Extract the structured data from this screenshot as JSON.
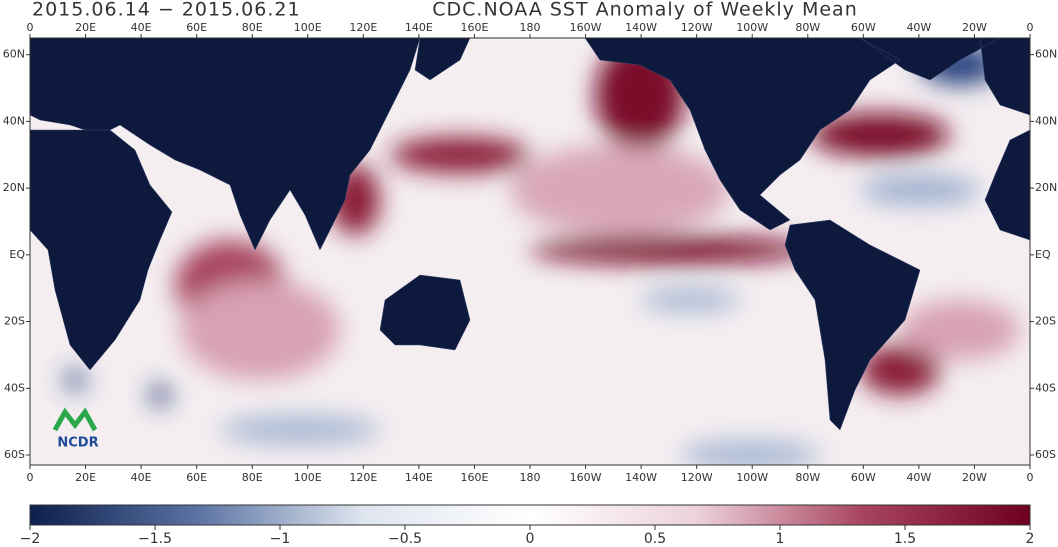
{
  "header": {
    "date_range": "2015.06.14 − 2015.06.21",
    "title": "CDC.NOAA  SST Anomaly of Weekly Mean"
  },
  "map": {
    "lon_range": [
      0,
      360
    ],
    "lat_range": [
      -63,
      65
    ],
    "lon_ticks": [
      {
        "value": 0,
        "label": "0"
      },
      {
        "value": 20,
        "label": "20E"
      },
      {
        "value": 40,
        "label": "40E"
      },
      {
        "value": 60,
        "label": "60E"
      },
      {
        "value": 80,
        "label": "80E"
      },
      {
        "value": 100,
        "label": "100E"
      },
      {
        "value": 120,
        "label": "120E"
      },
      {
        "value": 140,
        "label": "140E"
      },
      {
        "value": 160,
        "label": "160E"
      },
      {
        "value": 180,
        "label": "180"
      },
      {
        "value": 200,
        "label": "160W"
      },
      {
        "value": 220,
        "label": "140W"
      },
      {
        "value": 240,
        "label": "120W"
      },
      {
        "value": 260,
        "label": "100W"
      },
      {
        "value": 280,
        "label": "80W"
      },
      {
        "value": 300,
        "label": "60W"
      },
      {
        "value": 320,
        "label": "40W"
      },
      {
        "value": 340,
        "label": "20W"
      },
      {
        "value": 360,
        "label": "0"
      }
    ],
    "lat_ticks": [
      {
        "value": 60,
        "label": "60N"
      },
      {
        "value": 40,
        "label": "40N"
      },
      {
        "value": 20,
        "label": "20N"
      },
      {
        "value": 0,
        "label": "EQ"
      },
      {
        "value": -20,
        "label": "20S"
      },
      {
        "value": -40,
        "label": "40S"
      },
      {
        "value": -60,
        "label": "60S"
      }
    ]
  },
  "colorbar": {
    "range": [
      -2,
      2
    ],
    "colors": [
      "#0c1f4e",
      "#5a73a3",
      "#dfe5ef",
      "#ffffff",
      "#ecd2da",
      "#a84460",
      "#6e0020"
    ],
    "ticks": [
      {
        "value": -2,
        "label": "−2"
      },
      {
        "value": -1.5,
        "label": "−1.5"
      },
      {
        "value": -1,
        "label": "−1"
      },
      {
        "value": -0.5,
        "label": "−0.5"
      },
      {
        "value": 0,
        "label": "0"
      },
      {
        "value": 0.5,
        "label": "0.5"
      },
      {
        "value": 1,
        "label": "1"
      },
      {
        "value": 1.5,
        "label": "1.5"
      },
      {
        "value": 2,
        "label": "2"
      }
    ]
  },
  "logo": {
    "text": "NCDR"
  }
}
